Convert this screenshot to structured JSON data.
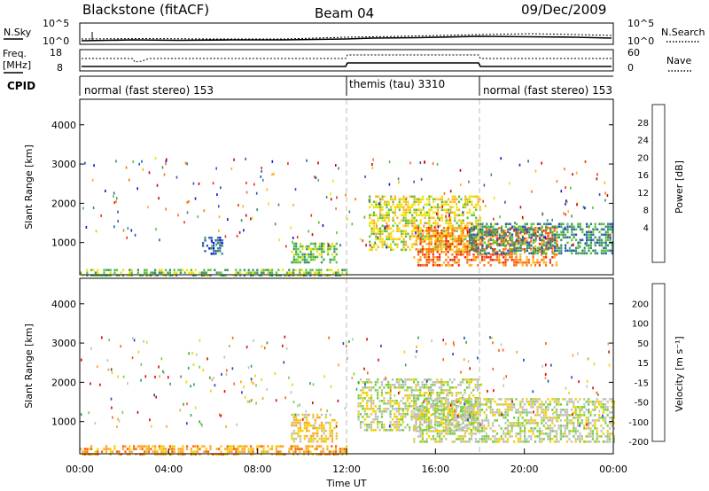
{
  "header": {
    "station": "Blackstone (fitACF)",
    "beam": "Beam 04",
    "date": "09/Dec/2009"
  },
  "summary_panels": {
    "noise": {
      "left_label": "N.Sky",
      "right_label": "N.Search",
      "left_ticks": [
        "10^5",
        "10^0"
      ],
      "right_ticks": [
        "10^5",
        "10^0"
      ]
    },
    "freq": {
      "left_label_1": "Freq.",
      "left_label_2": "[MHz]",
      "right_label": "Nave",
      "left_ticks": [
        "18",
        "8"
      ],
      "right_ticks": [
        "60",
        "0"
      ]
    },
    "cpid": {
      "label": "CPID",
      "segments": [
        {
          "start_hour": 0,
          "end_hour": 12,
          "text": "normal (fast stereo) 153"
        },
        {
          "start_hour": 12,
          "end_hour": 18,
          "text": "themis (tau) 3310"
        },
        {
          "start_hour": 18,
          "end_hour": 24,
          "text": "normal (fast stereo) 153"
        }
      ]
    }
  },
  "chart_data": [
    {
      "type": "heatmap",
      "name": "power",
      "ylabel": "Slant Range [km]",
      "y_ticks": [
        1000,
        2000,
        3000,
        4000
      ],
      "ylim": [
        180,
        4650
      ],
      "xlim": [
        0,
        24
      ],
      "colorbar": {
        "label": "Power [dB]",
        "ticks": [
          "28",
          "24",
          "20",
          "16",
          "12",
          "8",
          "4"
        ],
        "colors": [
          "#1010e0",
          "#2a5ab0",
          "#3a8f6a",
          "#56c23a",
          "#f0e000",
          "#ffb020",
          "#ff7010",
          "#f03010",
          "#d00000"
        ]
      },
      "regions": [
        {
          "t0": 0.0,
          "t1": 12.0,
          "r0": 190,
          "r1": 330,
          "level": 3
        },
        {
          "t0": 5.5,
          "t1": 6.4,
          "r0": 700,
          "r1": 1150,
          "level": 1
        },
        {
          "t0": 9.5,
          "t1": 11.6,
          "r0": 500,
          "r1": 1000,
          "level": 3
        },
        {
          "t0": 13.0,
          "t1": 18.0,
          "r0": 800,
          "r1": 2200,
          "level": 4
        },
        {
          "t0": 15.0,
          "t1": 21.5,
          "r0": 400,
          "r1": 1400,
          "level": 6
        },
        {
          "t0": 17.5,
          "t1": 24.0,
          "r0": 700,
          "r1": 1500,
          "level": 2
        }
      ]
    },
    {
      "type": "heatmap",
      "name": "velocity",
      "ylabel": "Slant Range [km]",
      "y_ticks": [
        1000,
        2000,
        3000,
        4000
      ],
      "ylim": [
        180,
        4650
      ],
      "xlim": [
        0,
        24
      ],
      "xlabel": "Time UT",
      "x_ticks": [
        "00:00",
        "04:00",
        "08:00",
        "12:00",
        "16:00",
        "20:00",
        "00:00"
      ],
      "colorbar": {
        "label": "Velocity [m s⁻¹]",
        "ticks": [
          "200",
          "100",
          "50",
          "15",
          "-15",
          "-50",
          "-100",
          "-200"
        ],
        "colors": [
          "#2040c0",
          "#30a050",
          "#70d040",
          "#c0c0b8",
          "#f0d000",
          "#ffa020",
          "#ff6000",
          "#e00000"
        ]
      },
      "regions": [
        {
          "t0": 0.0,
          "t1": 12.0,
          "r0": 190,
          "r1": 400,
          "level": 5
        },
        {
          "t0": 9.5,
          "t1": 11.6,
          "r0": 500,
          "r1": 1200,
          "level": 4
        },
        {
          "t0": 12.5,
          "t1": 18.0,
          "r0": 800,
          "r1": 2100,
          "level": 3
        },
        {
          "t0": 15.0,
          "t1": 24.0,
          "r0": 500,
          "r1": 1600,
          "level": 3
        }
      ]
    }
  ]
}
